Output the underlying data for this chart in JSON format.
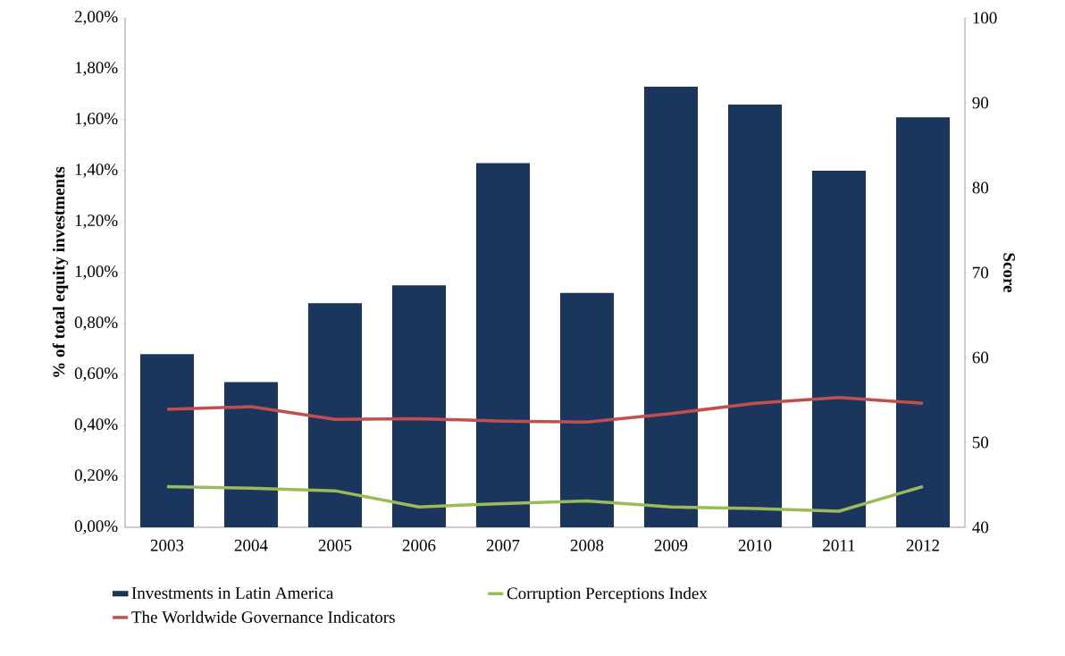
{
  "chart_data": {
    "type": "bar",
    "categories": [
      "2003",
      "2004",
      "2005",
      "2006",
      "2007",
      "2008",
      "2009",
      "2010",
      "2011",
      "2012"
    ],
    "ylabel": "% of total equity investments",
    "y2label": "Score",
    "ylim": [
      0,
      2
    ],
    "yticks": [
      {
        "value": 0,
        "label": "0,00%"
      },
      {
        "value": 0.2,
        "label": "0,20%"
      },
      {
        "value": 0.4,
        "label": "0,40%"
      },
      {
        "value": 0.6,
        "label": "0,60%"
      },
      {
        "value": 0.8,
        "label": "0,80%"
      },
      {
        "value": 1.0,
        "label": "1,00%"
      },
      {
        "value": 1.2,
        "label": "1,20%"
      },
      {
        "value": 1.4,
        "label": "1,40%"
      },
      {
        "value": 1.6,
        "label": "1,60%"
      },
      {
        "value": 1.8,
        "label": "1,80%"
      },
      {
        "value": 2.0,
        "label": "2,00%"
      }
    ],
    "y2lim": [
      40,
      100
    ],
    "y2ticks": [
      40,
      50,
      60,
      70,
      80,
      90,
      100
    ],
    "legend": "bottom",
    "grid": false,
    "series": [
      {
        "name": "Investments in Latin America",
        "color": "#1b365d",
        "values": [
          0.68,
          0.57,
          0.88,
          0.95,
          1.43,
          0.92,
          1.73,
          1.66,
          1.4,
          1.61
        ]
      },
      {
        "name": "Corruption Perceptions Index",
        "type": "line",
        "axis": "y2",
        "color": "#9bbb59",
        "values": [
          44.8,
          44.6,
          44.3,
          42.4,
          42.8,
          43.1,
          42.4,
          42.2,
          41.9,
          44.8
        ]
      },
      {
        "name": "The Worldwide Governance Indicators",
        "type": "line",
        "axis": "y2",
        "color": "#c0504d",
        "values": [
          53.9,
          54.2,
          52.7,
          52.8,
          52.5,
          52.4,
          53.4,
          54.6,
          55.3,
          54.6
        ]
      }
    ]
  }
}
